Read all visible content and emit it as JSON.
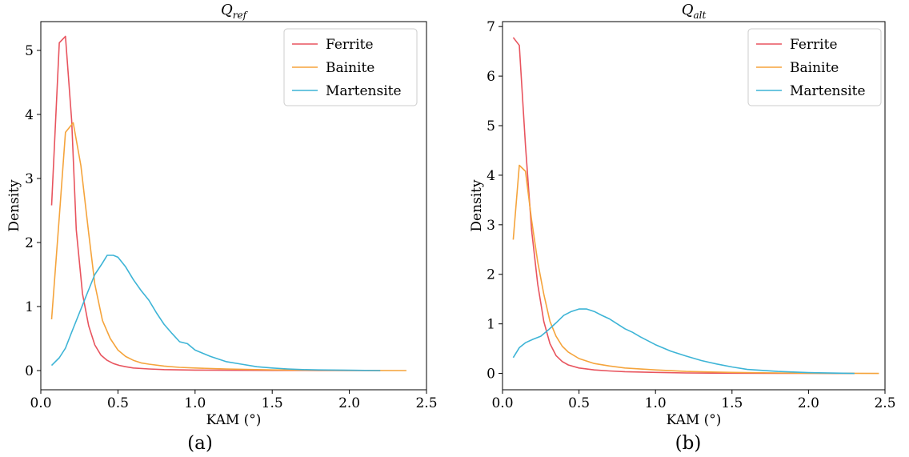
{
  "figure": {
    "panels": [
      {
        "caption": "(a)",
        "title_main": "Q",
        "title_sub": "ref",
        "xlabel": "KAM (°)",
        "ylabel": "Density"
      },
      {
        "caption": "(b)",
        "title_main": "Q",
        "title_sub": "alt",
        "xlabel": "KAM (°)",
        "ylabel": "Density"
      }
    ]
  },
  "chart_data": [
    {
      "type": "line",
      "title": "Q_ref",
      "caption": "(a)",
      "xlabel": "KAM (°)",
      "ylabel": "Density",
      "xlim": [
        0.0,
        2.5
      ],
      "ylim": [
        -0.3,
        5.45
      ],
      "xticks": [
        0.0,
        0.5,
        1.0,
        1.5,
        2.0,
        2.5
      ],
      "xtick_labels": [
        "0.0",
        "0.5",
        "1.0",
        "1.5",
        "2.0",
        "2.5"
      ],
      "yticks": [
        0,
        1,
        2,
        3,
        4,
        5
      ],
      "ytick_labels": [
        "0",
        "1",
        "2",
        "3",
        "4",
        "5"
      ],
      "grid": false,
      "legend_position": "top-right",
      "series": [
        {
          "name": "Ferrite",
          "color": "#e8545e",
          "x": [
            0.07,
            0.12,
            0.16,
            0.2,
            0.23,
            0.27,
            0.31,
            0.35,
            0.39,
            0.43,
            0.47,
            0.51,
            0.55,
            0.6,
            0.7,
            0.8,
            1.0,
            1.2,
            1.5,
            1.8,
            2.2
          ],
          "y": [
            2.58,
            5.12,
            5.22,
            3.9,
            2.2,
            1.2,
            0.7,
            0.4,
            0.24,
            0.16,
            0.11,
            0.08,
            0.06,
            0.04,
            0.025,
            0.015,
            0.008,
            0.005,
            0.002,
            0.001,
            0.0
          ]
        },
        {
          "name": "Bainite",
          "color": "#f5a43c",
          "x": [
            0.07,
            0.12,
            0.16,
            0.21,
            0.26,
            0.31,
            0.35,
            0.4,
            0.45,
            0.5,
            0.55,
            0.6,
            0.65,
            0.7,
            0.8,
            0.9,
            1.0,
            1.2,
            1.5,
            1.8,
            2.0,
            2.37
          ],
          "y": [
            0.8,
            2.4,
            3.72,
            3.87,
            3.2,
            2.15,
            1.35,
            0.78,
            0.5,
            0.32,
            0.22,
            0.16,
            0.12,
            0.1,
            0.07,
            0.05,
            0.04,
            0.025,
            0.01,
            0.005,
            0.002,
            0.0
          ]
        },
        {
          "name": "Martensite",
          "color": "#3db4d6",
          "x": [
            0.07,
            0.12,
            0.16,
            0.2,
            0.25,
            0.3,
            0.35,
            0.4,
            0.43,
            0.47,
            0.5,
            0.55,
            0.6,
            0.65,
            0.7,
            0.75,
            0.8,
            0.85,
            0.9,
            0.95,
            1.0,
            1.05,
            1.1,
            1.2,
            1.3,
            1.4,
            1.5,
            1.6,
            1.7,
            1.8,
            2.0,
            2.2
          ],
          "y": [
            0.08,
            0.2,
            0.35,
            0.6,
            0.9,
            1.2,
            1.5,
            1.68,
            1.8,
            1.8,
            1.77,
            1.62,
            1.42,
            1.25,
            1.1,
            0.9,
            0.72,
            0.58,
            0.45,
            0.42,
            0.32,
            0.27,
            0.22,
            0.14,
            0.1,
            0.06,
            0.04,
            0.025,
            0.015,
            0.01,
            0.005,
            0.0
          ]
        }
      ]
    },
    {
      "type": "line",
      "title": "Q_alt",
      "caption": "(b)",
      "xlabel": "KAM (°)",
      "ylabel": "Density",
      "xlim": [
        0.0,
        2.5
      ],
      "ylim": [
        -0.33,
        7.1
      ],
      "xticks": [
        0.0,
        0.5,
        1.0,
        1.5,
        2.0,
        2.5
      ],
      "xtick_labels": [
        "0.0",
        "0.5",
        "1.0",
        "1.5",
        "2.0",
        "2.5"
      ],
      "yticks": [
        0,
        1,
        2,
        3,
        4,
        5,
        6,
        7
      ],
      "ytick_labels": [
        "0",
        "1",
        "2",
        "3",
        "4",
        "5",
        "6",
        "7"
      ],
      "grid": false,
      "legend_position": "top-right",
      "series": [
        {
          "name": "Ferrite",
          "color": "#e8545e",
          "x": [
            0.07,
            0.11,
            0.15,
            0.19,
            0.23,
            0.27,
            0.31,
            0.35,
            0.39,
            0.43,
            0.5,
            0.6,
            0.7,
            0.8,
            1.0,
            1.2,
            1.5,
            1.8,
            2.3
          ],
          "y": [
            6.78,
            6.62,
            4.6,
            2.9,
            1.8,
            1.05,
            0.6,
            0.36,
            0.24,
            0.17,
            0.11,
            0.07,
            0.05,
            0.035,
            0.02,
            0.01,
            0.005,
            0.002,
            0.0
          ]
        },
        {
          "name": "Bainite",
          "color": "#f5a43c",
          "x": [
            0.07,
            0.11,
            0.15,
            0.19,
            0.23,
            0.27,
            0.31,
            0.35,
            0.39,
            0.43,
            0.5,
            0.6,
            0.7,
            0.8,
            1.0,
            1.2,
            1.5,
            1.8,
            2.0,
            2.46
          ],
          "y": [
            2.7,
            4.2,
            4.08,
            3.1,
            2.25,
            1.6,
            1.05,
            0.75,
            0.55,
            0.43,
            0.3,
            0.2,
            0.15,
            0.11,
            0.07,
            0.04,
            0.02,
            0.01,
            0.005,
            0.0
          ]
        },
        {
          "name": "Martensite",
          "color": "#3db4d6",
          "x": [
            0.07,
            0.11,
            0.15,
            0.2,
            0.25,
            0.3,
            0.35,
            0.4,
            0.45,
            0.5,
            0.55,
            0.6,
            0.65,
            0.7,
            0.75,
            0.8,
            0.85,
            0.9,
            1.0,
            1.1,
            1.2,
            1.3,
            1.4,
            1.5,
            1.6,
            1.8,
            2.0,
            2.3
          ],
          "y": [
            0.32,
            0.52,
            0.62,
            0.69,
            0.75,
            0.88,
            1.02,
            1.17,
            1.25,
            1.3,
            1.3,
            1.25,
            1.17,
            1.1,
            1.0,
            0.9,
            0.83,
            0.74,
            0.58,
            0.45,
            0.35,
            0.26,
            0.19,
            0.13,
            0.08,
            0.04,
            0.015,
            0.0
          ]
        }
      ]
    }
  ]
}
